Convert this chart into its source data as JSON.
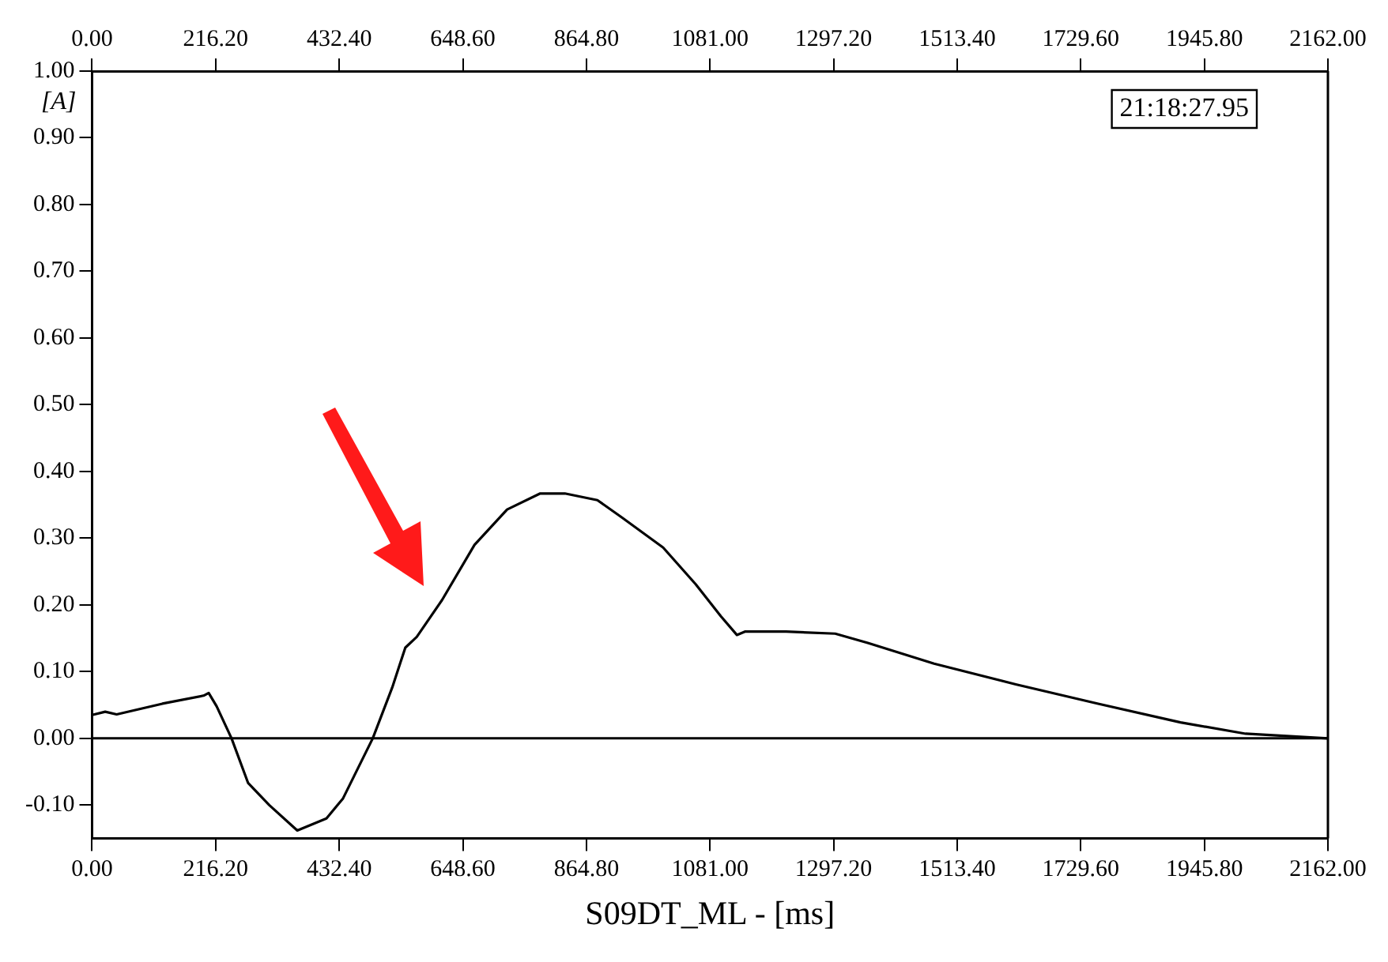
{
  "chart_data": {
    "type": "line",
    "xlabel": "S09DT_ML - [ms]",
    "ylabel": "[A]",
    "annotations": [
      "21:18:27.95"
    ],
    "series": [
      {
        "color": "#000000",
        "x": [
          0,
          23,
          43,
          123,
          195,
          204,
          218,
          244,
          273,
          310,
          359,
          410,
          439,
          491,
          525,
          548,
          568,
          612,
          669,
          726,
          784,
          827,
          884,
          927,
          999,
          1056,
          1100,
          1128,
          1142,
          1214,
          1300,
          1357,
          1473,
          1616,
          1760,
          1904,
          2018,
          2162
        ],
        "values": [
          0.035,
          0.04,
          0.036,
          0.052,
          0.064,
          0.068,
          0.048,
          0.0,
          -0.067,
          -0.1,
          -0.138,
          -0.12,
          -0.09,
          0.0,
          0.076,
          0.136,
          0.152,
          0.207,
          0.29,
          0.343,
          0.367,
          0.367,
          0.357,
          0.331,
          0.286,
          0.231,
          0.183,
          0.155,
          0.16,
          0.16,
          0.157,
          0.143,
          0.112,
          0.081,
          0.052,
          0.024,
          0.007,
          0.0
        ]
      }
    ],
    "xlim": [
      0,
      2162
    ],
    "xticks": [
      {
        "value": 0,
        "label": "0.00"
      },
      {
        "value": 216.2,
        "label": "216.20"
      },
      {
        "value": 432.4,
        "label": "432.40"
      },
      {
        "value": 648.6,
        "label": "648.60"
      },
      {
        "value": 864.8,
        "label": "864.80"
      },
      {
        "value": 1081,
        "label": "1081.00"
      },
      {
        "value": 1297.2,
        "label": "1297.20"
      },
      {
        "value": 1513.4,
        "label": "1513.40"
      },
      {
        "value": 1729.6,
        "label": "1729.60"
      },
      {
        "value": 1945.8,
        "label": "1945.80"
      },
      {
        "value": 2162,
        "label": "2162.00"
      }
    ],
    "x2lim": [
      0,
      2162
    ],
    "x2ticks": [
      {
        "value": 0,
        "label": "0.00"
      },
      {
        "value": 216.2,
        "label": "216.20"
      },
      {
        "value": 432.4,
        "label": "432.40"
      },
      {
        "value": 648.6,
        "label": "648.60"
      },
      {
        "value": 864.8,
        "label": "864.80"
      },
      {
        "value": 1081,
        "label": "1081.00"
      },
      {
        "value": 1297.2,
        "label": "1297.20"
      },
      {
        "value": 1513.4,
        "label": "1513.40"
      },
      {
        "value": 1729.6,
        "label": "1729.60"
      },
      {
        "value": 1945.8,
        "label": "1945.80"
      },
      {
        "value": 2162,
        "label": "2162.00"
      }
    ],
    "ylim": [
      -0.15,
      1.0
    ],
    "yticks": [
      {
        "value": -0.1,
        "label": "-0.10"
      },
      {
        "value": 0,
        "label": "0.00"
      },
      {
        "value": 0.1,
        "label": "0.10"
      },
      {
        "value": 0.2,
        "label": "0.20"
      },
      {
        "value": 0.3,
        "label": "0.30"
      },
      {
        "value": 0.4,
        "label": "0.40"
      },
      {
        "value": 0.5,
        "label": "0.50"
      },
      {
        "value": 0.6,
        "label": "0.60"
      },
      {
        "value": 0.7,
        "label": "0.70"
      },
      {
        "value": 0.8,
        "label": "0.80"
      },
      {
        "value": 0.9,
        "label": "0.90"
      },
      {
        "value": 1.0,
        "label": "1.00"
      }
    ],
    "ref_lines": [
      {
        "axis": "y",
        "value": 0,
        "color": "#000000"
      }
    ],
    "grid": false,
    "legend": false,
    "marker": "none",
    "line_style": "solid"
  }
}
